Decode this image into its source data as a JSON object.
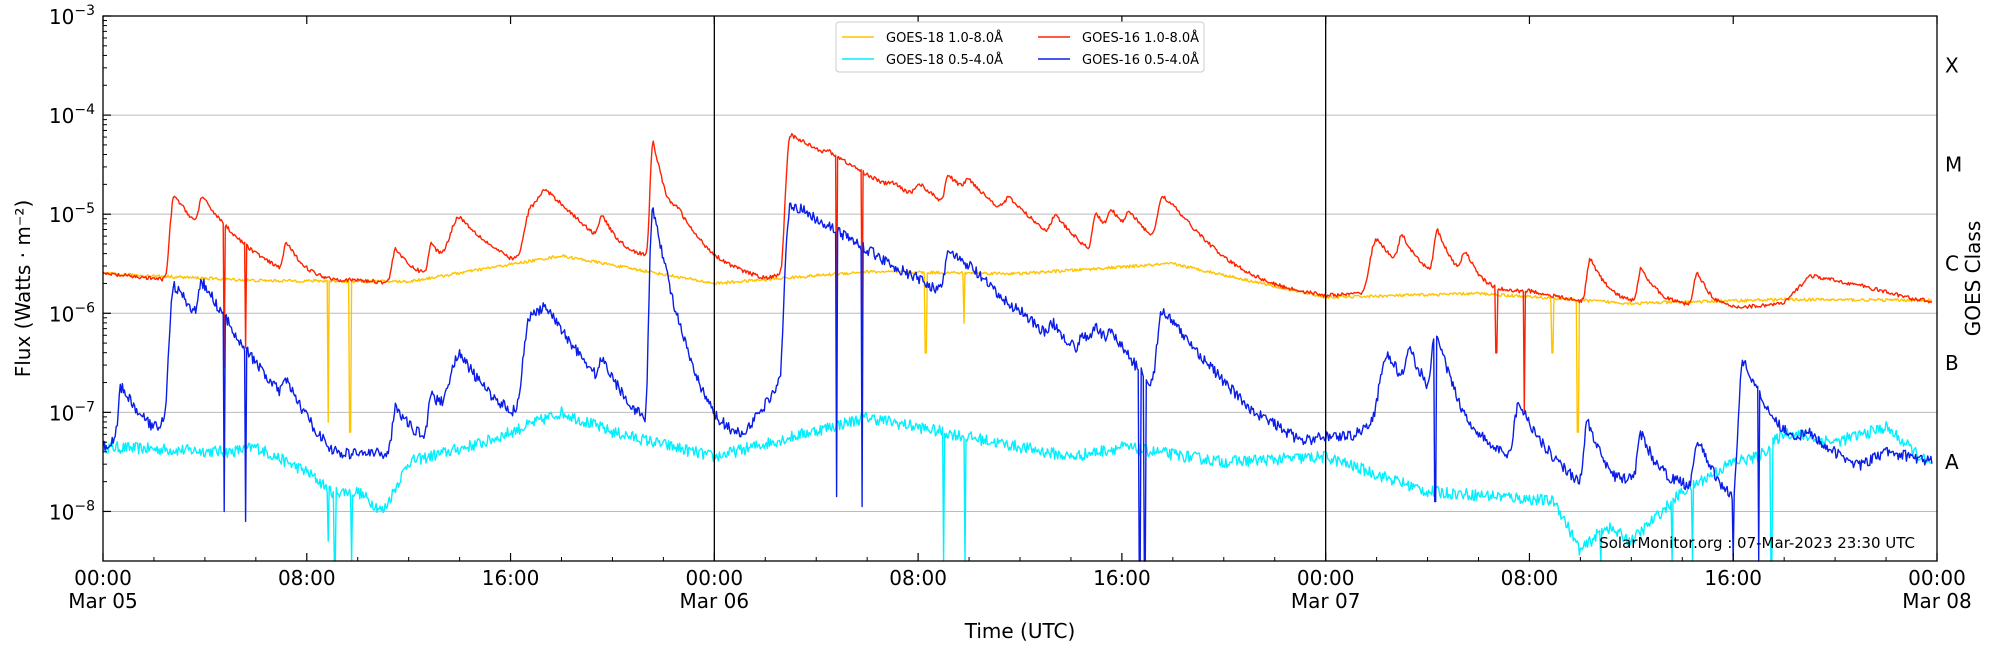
{
  "chart_data": {
    "type": "line",
    "title": "",
    "xlabel": "Time (UTC)",
    "ylabel": "Flux (Watts · m⁻²)",
    "ylabel_right": "GOES Class",
    "x_range_hours": [
      0,
      72
    ],
    "ylim_log10": [
      -8.5,
      -3
    ],
    "y_scale": "log",
    "grid": "horizontal",
    "legend_position": "top-center",
    "x_ticks": [
      {
        "hour": 0,
        "time": "00:00",
        "date": "Mar 05"
      },
      {
        "hour": 8,
        "time": "08:00",
        "date": ""
      },
      {
        "hour": 16,
        "time": "16:00",
        "date": ""
      },
      {
        "hour": 24,
        "time": "00:00",
        "date": "Mar 06"
      },
      {
        "hour": 32,
        "time": "08:00",
        "date": ""
      },
      {
        "hour": 40,
        "time": "16:00",
        "date": ""
      },
      {
        "hour": 48,
        "time": "00:00",
        "date": "Mar 07"
      },
      {
        "hour": 56,
        "time": "08:00",
        "date": ""
      },
      {
        "hour": 64,
        "time": "16:00",
        "date": ""
      },
      {
        "hour": 72,
        "time": "00:00",
        "date": "Mar 08"
      }
    ],
    "y_ticks": [
      {
        "exp": -8,
        "base": "10",
        "sup": "−8"
      },
      {
        "exp": -7,
        "base": "10",
        "sup": "−7"
      },
      {
        "exp": -6,
        "base": "10",
        "sup": "−6"
      },
      {
        "exp": -5,
        "base": "10",
        "sup": "−5"
      },
      {
        "exp": -4,
        "base": "10",
        "sup": "−4"
      },
      {
        "exp": -3,
        "base": "10",
        "sup": "−3"
      }
    ],
    "class_labels": [
      {
        "label": "A",
        "exp": -7.5
      },
      {
        "label": "B",
        "exp": -6.5
      },
      {
        "label": "C",
        "exp": -5.5
      },
      {
        "label": "M",
        "exp": -4.5
      },
      {
        "label": "X",
        "exp": -3.5
      }
    ],
    "day_separators_hours": [
      24,
      48
    ],
    "legend": [
      {
        "name": "GOES-18 1.0-8.0Å",
        "color": "#ffc400"
      },
      {
        "name": "GOES-18 0.5-4.0Å",
        "color": "#00f0ff"
      },
      {
        "name": "GOES-16 1.0-8.0Å",
        "color": "#ff2200"
      },
      {
        "name": "GOES-16 0.5-4.0Å",
        "color": "#0a1ee8"
      }
    ],
    "watermark": "SolarMonitor.org : 07-Mar-2023 23:30 UTC",
    "series": [
      {
        "name": "GOES-16 1.0-8.0Å",
        "color": "#ff2200",
        "baseline": [
          [
            0,
            -5.6
          ],
          [
            2,
            -5.65
          ],
          [
            4,
            -5.7
          ],
          [
            6,
            -5.66
          ],
          [
            8,
            -5.72
          ],
          [
            9,
            -5.7
          ],
          [
            10,
            -5.68
          ],
          [
            12,
            -5.7
          ],
          [
            14,
            -5.55
          ],
          [
            16,
            -5.62
          ],
          [
            18,
            -5.4
          ],
          [
            20,
            -5.6
          ],
          [
            22,
            -5.5
          ],
          [
            24,
            -5.7
          ],
          [
            26,
            -5.72
          ],
          [
            28,
            -5.5
          ],
          [
            30,
            -5.6
          ],
          [
            32,
            -5.7
          ],
          [
            34,
            -5.6
          ],
          [
            36,
            -5.62
          ],
          [
            38,
            -5.7
          ],
          [
            40,
            -5.8
          ],
          [
            42,
            -5.45
          ],
          [
            44,
            -5.7
          ],
          [
            46,
            -5.8
          ],
          [
            48,
            -5.85
          ],
          [
            50,
            -5.8
          ],
          [
            52,
            -5.7
          ],
          [
            54,
            -5.82
          ],
          [
            56,
            -5.78
          ],
          [
            58,
            -5.88
          ],
          [
            60,
            -5.9
          ],
          [
            62,
            -5.92
          ],
          [
            64,
            -5.95
          ],
          [
            66,
            -5.9
          ],
          [
            67,
            -5.62
          ],
          [
            69,
            -5.72
          ],
          [
            71,
            -5.85
          ],
          [
            71.8,
            -5.88
          ]
        ],
        "flares": [
          [
            2.8,
            -4.88,
            0.12,
            1.1
          ],
          [
            3.9,
            -5.1,
            0.12,
            1.1
          ],
          [
            7.2,
            -5.6,
            0.1,
            0.6
          ],
          [
            11.5,
            -5.6,
            0.12,
            0.6
          ],
          [
            12.9,
            -5.6,
            0.1,
            0.5
          ],
          [
            14.0,
            -5.2,
            0.3,
            1.2
          ],
          [
            16.8,
            -5.15,
            0.2,
            0.9
          ],
          [
            17.4,
            -5.0,
            0.3,
            1.5
          ],
          [
            19.6,
            -5.35,
            0.12,
            0.5
          ],
          [
            21.6,
            -4.3,
            0.08,
            0.35
          ],
          [
            22.6,
            -5.25,
            0.25,
            1.2
          ],
          [
            27.0,
            -4.22,
            0.12,
            3.0
          ],
          [
            28.5,
            -5.4,
            0.1,
            0.7
          ],
          [
            31.0,
            -5.55,
            0.15,
            0.8
          ],
          [
            32.1,
            -5.2,
            0.2,
            0.9
          ],
          [
            33.2,
            -4.9,
            0.12,
            1.4
          ],
          [
            34.0,
            -5.2,
            0.15,
            1.0
          ],
          [
            35.6,
            -5.3,
            0.2,
            1.1
          ],
          [
            37.4,
            -5.4,
            0.15,
            0.8
          ],
          [
            39.0,
            -5.2,
            0.12,
            0.9
          ],
          [
            39.6,
            -5.3,
            0.12,
            0.8
          ],
          [
            40.3,
            -5.35,
            0.15,
            0.9
          ],
          [
            41.6,
            -5.0,
            0.15,
            1.2
          ],
          [
            50.0,
            -5.4,
            0.2,
            0.9
          ],
          [
            51.0,
            -5.5,
            0.12,
            0.5
          ],
          [
            52.4,
            -5.35,
            0.12,
            0.5
          ],
          [
            53.5,
            -5.7,
            0.15,
            0.5
          ],
          [
            58.4,
            -5.65,
            0.12,
            0.5
          ],
          [
            60.4,
            -5.8,
            0.12,
            0.5
          ],
          [
            62.6,
            -5.85,
            0.12,
            0.4
          ]
        ],
        "dips": [
          [
            4.75,
            -6.55
          ],
          [
            5.6,
            -6.35
          ],
          [
            28.8,
            -6.3
          ],
          [
            29.8,
            -6.3
          ],
          [
            54.7,
            -6.4
          ],
          [
            55.8,
            -7.0
          ]
        ],
        "noise": 0.02
      },
      {
        "name": "GOES-16 0.5-4.0Å",
        "color": "#0a1ee8",
        "baseline": [
          [
            0,
            -7.35
          ],
          [
            1,
            -7.2
          ],
          [
            2,
            -7.25
          ],
          [
            3,
            -6.9
          ],
          [
            4,
            -7.1
          ],
          [
            4.6,
            -7.3
          ],
          [
            5,
            -7.4
          ],
          [
            6,
            -7.45
          ],
          [
            7,
            -7.35
          ],
          [
            8,
            -7.6
          ],
          [
            9,
            -7.7
          ],
          [
            10,
            -7.5
          ],
          [
            11,
            -7.45
          ],
          [
            12,
            -7.35
          ],
          [
            13,
            -7.25
          ],
          [
            14,
            -7.05
          ],
          [
            15,
            -7.4
          ],
          [
            16,
            -7.35
          ],
          [
            17,
            -7.15
          ],
          [
            18,
            -7.35
          ],
          [
            19,
            -7.45
          ],
          [
            20,
            -7.7
          ],
          [
            21,
            -7.55
          ],
          [
            22,
            -7.4
          ],
          [
            23,
            -7.15
          ],
          [
            24,
            -7.4
          ],
          [
            25,
            -7.4
          ],
          [
            27,
            -6.5
          ],
          [
            29,
            -6.8
          ],
          [
            30,
            -7.15
          ],
          [
            31,
            -7.4
          ],
          [
            32,
            -7.5
          ],
          [
            33,
            -7.2
          ],
          [
            34,
            -6.7
          ],
          [
            35,
            -7.2
          ],
          [
            36,
            -7.5
          ],
          [
            37,
            -7.55
          ],
          [
            38,
            -7.45
          ],
          [
            39,
            -7.15
          ],
          [
            40,
            -7.3
          ],
          [
            41,
            -7.4
          ],
          [
            42,
            -7.2
          ],
          [
            43,
            -7.35
          ],
          [
            44,
            -7.5
          ],
          [
            45,
            -7.6
          ],
          [
            46,
            -7.5
          ],
          [
            47,
            -7.55
          ],
          [
            48,
            -7.35
          ],
          [
            49,
            -7.3
          ],
          [
            50,
            -7.1
          ],
          [
            51,
            -7.3
          ],
          [
            52,
            -7.6
          ],
          [
            53,
            -7.9
          ],
          [
            54,
            -7.5
          ],
          [
            55,
            -7.5
          ],
          [
            56,
            -7.5
          ],
          [
            57,
            -7.6
          ],
          [
            58,
            -7.75
          ],
          [
            59,
            -7.9
          ],
          [
            60,
            -7.7
          ],
          [
            61,
            -7.75
          ],
          [
            62,
            -7.75
          ],
          [
            63,
            -7.8
          ],
          [
            64,
            -7.95
          ],
          [
            65,
            -8.0
          ],
          [
            66,
            -7.6
          ],
          [
            67,
            -7.3
          ],
          [
            68,
            -7.45
          ],
          [
            69,
            -7.55
          ],
          [
            70,
            -7.4
          ],
          [
            71,
            -7.45
          ],
          [
            71.8,
            -7.5
          ]
        ],
        "flares": [
          [
            0.7,
            -6.9,
            0.08,
            0.6
          ],
          [
            2.8,
            -5.75,
            0.12,
            1.2
          ],
          [
            3.9,
            -5.9,
            0.12,
            1.0
          ],
          [
            7.2,
            -7.1,
            0.1,
            0.6
          ],
          [
            11.5,
            -7.1,
            0.1,
            0.5
          ],
          [
            12.9,
            -7.0,
            0.1,
            0.5
          ],
          [
            14.0,
            -6.55,
            0.3,
            1.3
          ],
          [
            16.8,
            -6.1,
            0.2,
            0.9
          ],
          [
            17.4,
            -6.2,
            0.3,
            1.4
          ],
          [
            19.6,
            -6.8,
            0.1,
            0.6
          ],
          [
            21.6,
            -4.95,
            0.08,
            0.35
          ],
          [
            22.6,
            -6.9,
            0.2,
            1.2
          ],
          [
            27.0,
            -4.9,
            0.12,
            2.8
          ],
          [
            28.5,
            -6.9,
            0.1,
            0.6
          ],
          [
            32.1,
            -6.9,
            0.2,
            0.9
          ],
          [
            33.2,
            -5.55,
            0.12,
            1.4
          ],
          [
            34.1,
            -6.6,
            0.15,
            1.0
          ],
          [
            36.0,
            -6.9,
            0.2,
            1.0
          ],
          [
            37.3,
            -6.6,
            0.12,
            0.7
          ],
          [
            38.5,
            -6.6,
            0.12,
            0.6
          ],
          [
            39.0,
            -6.5,
            0.12,
            0.9
          ],
          [
            39.6,
            -6.65,
            0.12,
            0.8
          ],
          [
            41.6,
            -6.05,
            0.15,
            1.3
          ],
          [
            50.4,
            -6.5,
            0.2,
            1.0
          ],
          [
            51.3,
            -6.6,
            0.12,
            0.7
          ],
          [
            52.3,
            -6.3,
            0.1,
            0.5
          ],
          [
            55.6,
            -7.05,
            0.15,
            0.6
          ],
          [
            58.3,
            -7.2,
            0.12,
            0.5
          ],
          [
            60.4,
            -7.4,
            0.12,
            0.5
          ],
          [
            62.6,
            -7.45,
            0.12,
            0.5
          ],
          [
            64.4,
            -6.5,
            0.12,
            0.8
          ]
        ],
        "dips": [
          [
            4.75,
            -8.0
          ],
          [
            5.6,
            -8.1
          ],
          [
            28.8,
            -7.85
          ],
          [
            29.8,
            -7.95
          ],
          [
            40.7,
            -8.6
          ],
          [
            40.9,
            -8.55
          ],
          [
            52.3,
            -7.9
          ],
          [
            64.0,
            -8.5
          ],
          [
            65.0,
            -8.6
          ]
        ],
        "noise": 0.055
      },
      {
        "name": "GOES-18 1.0-8.0Å",
        "color": "#ffc400",
        "baseline": [
          [
            0,
            -5.6
          ],
          [
            6,
            -5.67
          ],
          [
            12,
            -5.68
          ],
          [
            18,
            -5.42
          ],
          [
            24,
            -5.7
          ],
          [
            30,
            -5.58
          ],
          [
            36,
            -5.6
          ],
          [
            42,
            -5.5
          ],
          [
            48,
            -5.84
          ],
          [
            54,
            -5.8
          ],
          [
            60,
            -5.9
          ],
          [
            66,
            -5.86
          ],
          [
            71.8,
            -5.87
          ]
        ],
        "flares": [],
        "dips": [
          [
            8.85,
            -7.1
          ],
          [
            9.7,
            -7.2
          ],
          [
            32.3,
            -6.4
          ],
          [
            33.8,
            -6.1
          ],
          [
            56.9,
            -6.4
          ],
          [
            57.9,
            -7.2
          ]
        ],
        "noise": 0.015
      },
      {
        "name": "GOES-18 0.5-4.0Å",
        "color": "#00f0ff",
        "baseline": [
          [
            0,
            -7.35
          ],
          [
            5,
            -7.4
          ],
          [
            6,
            -7.35
          ],
          [
            8,
            -7.6
          ],
          [
            9,
            -7.8
          ],
          [
            10,
            -7.8
          ],
          [
            11,
            -8.0
          ],
          [
            12,
            -7.5
          ],
          [
            15,
            -7.3
          ],
          [
            18,
            -7.0
          ],
          [
            20,
            -7.2
          ],
          [
            24,
            -7.45
          ],
          [
            30,
            -7.05
          ],
          [
            35,
            -7.3
          ],
          [
            38,
            -7.45
          ],
          [
            40,
            -7.35
          ],
          [
            44,
            -7.5
          ],
          [
            48,
            -7.45
          ],
          [
            52,
            -7.8
          ],
          [
            55,
            -7.85
          ],
          [
            57,
            -7.9
          ],
          [
            58,
            -8.4
          ],
          [
            59,
            -8.15
          ],
          [
            60,
            -8.3
          ],
          [
            62,
            -7.8
          ],
          [
            64,
            -7.5
          ],
          [
            65,
            -7.45
          ],
          [
            66,
            -7.2
          ],
          [
            68,
            -7.3
          ],
          [
            70,
            -7.15
          ],
          [
            71.8,
            -7.55
          ]
        ],
        "flares": [],
        "dips": [
          [
            8.85,
            -8.3
          ],
          [
            9.1,
            -8.7
          ],
          [
            9.75,
            -8.9
          ],
          [
            33.0,
            -8.9
          ],
          [
            33.85,
            -8.9
          ],
          [
            58.8,
            -8.9
          ],
          [
            61.6,
            -8.75
          ],
          [
            62.4,
            -8.7
          ],
          [
            65.5,
            -8.9
          ]
        ],
        "noise": 0.06
      }
    ]
  }
}
